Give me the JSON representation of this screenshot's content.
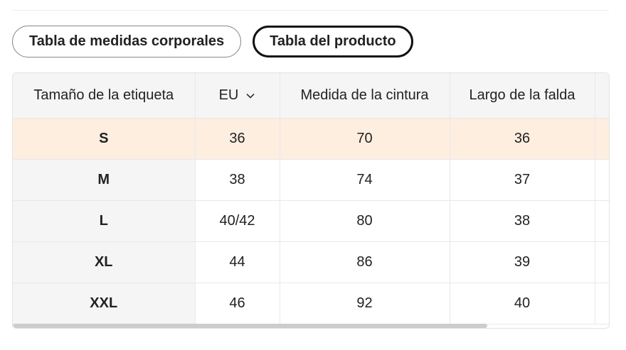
{
  "tabs": [
    {
      "label": "Tabla de medidas corporales",
      "active": false
    },
    {
      "label": "Tabla del producto",
      "active": true
    }
  ],
  "table": {
    "headers": {
      "size_label": "Tamaño de la etiqueta",
      "unit": "EU",
      "waist": "Medida de la cintura",
      "skirt_length": "Largo de la falda"
    },
    "rows": [
      {
        "size": "S",
        "eu": "36",
        "waist": "70",
        "length": "36"
      },
      {
        "size": "M",
        "eu": "38",
        "waist": "74",
        "length": "37"
      },
      {
        "size": "L",
        "eu": "40/42",
        "waist": "80",
        "length": "38"
      },
      {
        "size": "XL",
        "eu": "44",
        "waist": "86",
        "length": "39"
      },
      {
        "size": "XXL",
        "eu": "46",
        "waist": "92",
        "length": "40"
      }
    ]
  },
  "colors": {
    "highlight_row": "#fdeee0",
    "header_bg": "#f5f5f5"
  },
  "icons": {
    "unit_dropdown": "chevron-down-icon"
  }
}
